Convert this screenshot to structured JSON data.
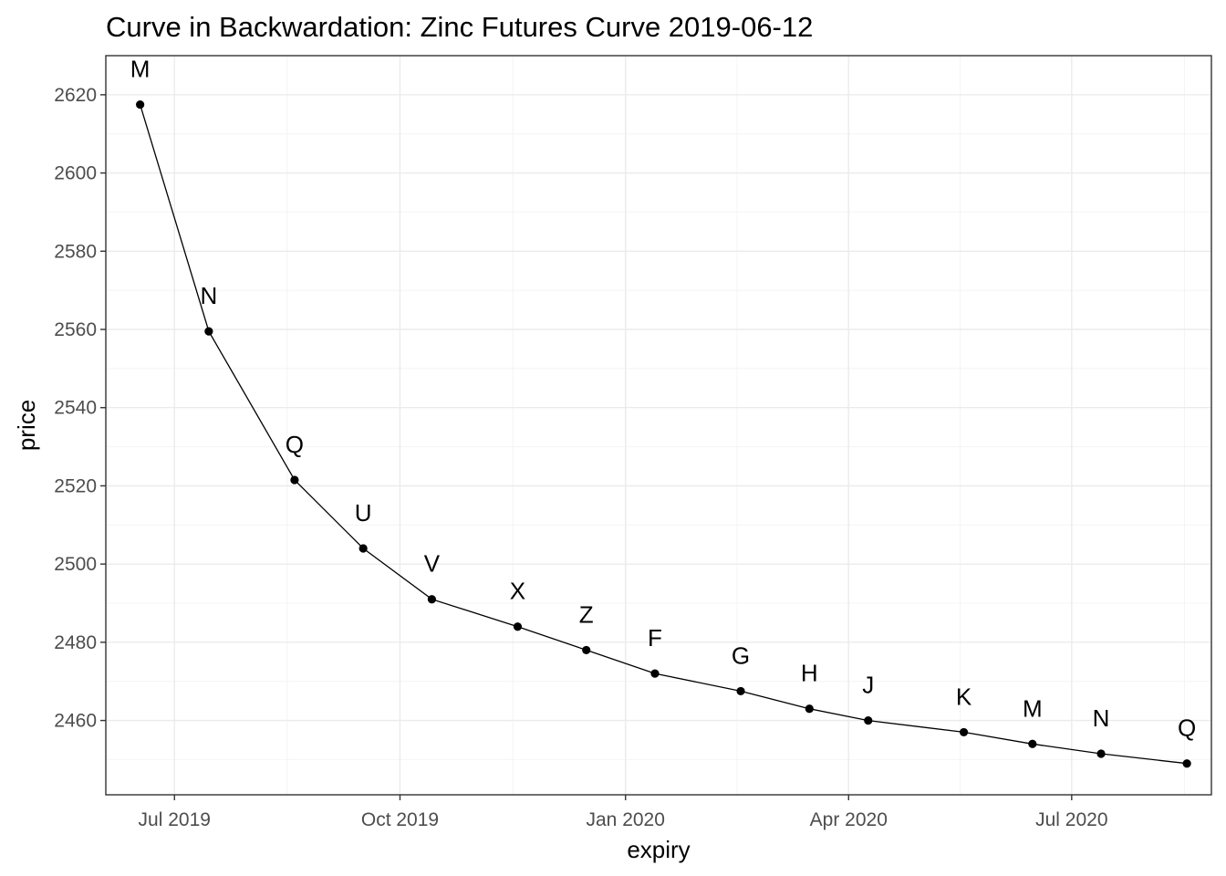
{
  "chart_data": {
    "type": "line",
    "title": "Curve in Backwardation: Zinc Futures Curve 2019-06-12",
    "xlabel": "expiry",
    "ylabel": "price",
    "x_type": "date",
    "xlim": [
      "2019-06-03",
      "2020-08-27"
    ],
    "ylim": [
      2441,
      2630
    ],
    "x_ticks": [
      {
        "date": "2019-07-01",
        "label": "Jul 2019"
      },
      {
        "date": "2019-10-01",
        "label": "Oct 2019"
      },
      {
        "date": "2020-01-01",
        "label": "Jan 2020"
      },
      {
        "date": "2020-04-01",
        "label": "Apr 2020"
      },
      {
        "date": "2020-07-01",
        "label": "Jul 2020"
      }
    ],
    "y_ticks": [
      2460,
      2480,
      2500,
      2520,
      2540,
      2560,
      2580,
      2600,
      2620
    ],
    "grid": true,
    "legend": "none",
    "points": [
      {
        "expiry": "2019-06-17",
        "price": 2617.5,
        "label": "M"
      },
      {
        "expiry": "2019-07-15",
        "price": 2559.5,
        "label": "N"
      },
      {
        "expiry": "2019-08-19",
        "price": 2521.5,
        "label": "Q"
      },
      {
        "expiry": "2019-09-16",
        "price": 2504,
        "label": "U"
      },
      {
        "expiry": "2019-10-14",
        "price": 2491,
        "label": "V"
      },
      {
        "expiry": "2019-11-18",
        "price": 2484,
        "label": "X"
      },
      {
        "expiry": "2019-12-16",
        "price": 2478,
        "label": "Z"
      },
      {
        "expiry": "2020-01-13",
        "price": 2472,
        "label": "F"
      },
      {
        "expiry": "2020-02-17",
        "price": 2467.5,
        "label": "G"
      },
      {
        "expiry": "2020-03-16",
        "price": 2463,
        "label": "H"
      },
      {
        "expiry": "2020-04-09",
        "price": 2460,
        "label": "J"
      },
      {
        "expiry": "2020-05-18",
        "price": 2457,
        "label": "K"
      },
      {
        "expiry": "2020-06-15",
        "price": 2454,
        "label": "M"
      },
      {
        "expiry": "2020-07-13",
        "price": 2451.5,
        "label": "N"
      },
      {
        "expiry": "2020-08-17",
        "price": 2449,
        "label": "Q"
      }
    ]
  }
}
